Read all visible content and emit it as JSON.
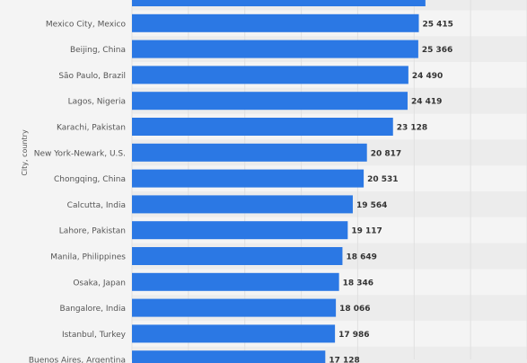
{
  "chart_data": {
    "type": "bar",
    "orientation": "horizontal",
    "ylabel": "City, country",
    "categories": [
      "",
      "Mexico City, Mexico",
      "Beijing, China",
      "São Paulo, Brazil",
      "Lagos, Nigeria",
      "Karachi, Pakistan",
      "New York-Newark, U.S.",
      "Chongqing, China",
      "Calcutta, India",
      "Lahore, Pakistan",
      "Manila, Philippines",
      "Osaka, Japan",
      "Bangalore, India",
      "Istanbul, Turkey",
      "Buenos Aires, Argentina"
    ],
    "values": [
      26000,
      25415,
      25366,
      24490,
      24419,
      23128,
      20817,
      20531,
      19564,
      19117,
      18649,
      18346,
      18066,
      17986,
      17128
    ],
    "value_labels": [
      "",
      "25 415",
      "25 366",
      "24 490",
      "24 419",
      "23 128",
      "20 817",
      "20 531",
      "19 564",
      "19 117",
      "18 649",
      "18 346",
      "18 066",
      "17 986",
      "17 128"
    ],
    "xlim": [
      0,
      35000
    ],
    "grid": true,
    "legend": "none",
    "bar_color": "#2b78e4",
    "label_color": "#555555",
    "value_label_color": "#333333",
    "stripe_color": "#ececec",
    "background_color": "#f4f4f4",
    "grid_color": "#e0e0e0"
  }
}
